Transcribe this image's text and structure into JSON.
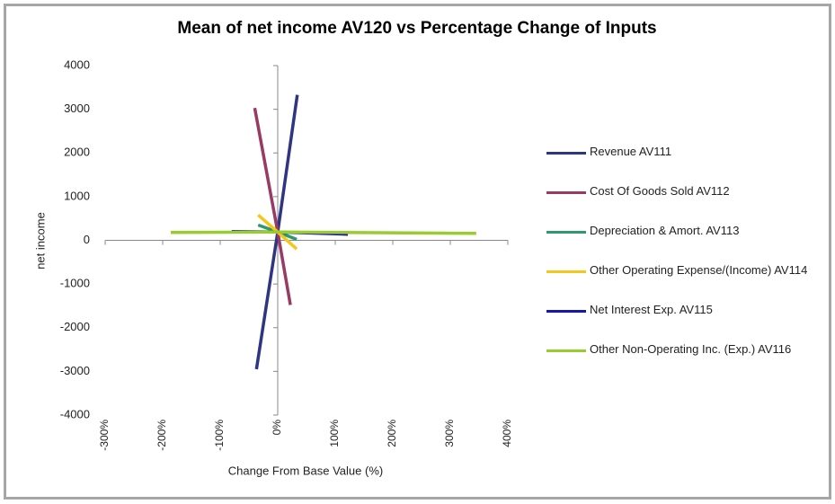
{
  "chart_data": {
    "type": "line",
    "title": "Mean of net income AV120 vs Percentage Change of Inputs",
    "x_label": "Change From Base Value (%)",
    "y_label": "net income",
    "xlim": [
      -300,
      400
    ],
    "xticks": [
      {
        "value": -300,
        "label": "-300%"
      },
      {
        "value": -200,
        "label": "-200%"
      },
      {
        "value": -100,
        "label": "-100%"
      },
      {
        "value": 0,
        "label": "0%"
      },
      {
        "value": 100,
        "label": "100%"
      },
      {
        "value": 200,
        "label": "200%"
      },
      {
        "value": 300,
        "label": "300%"
      },
      {
        "value": 400,
        "label": "400%"
      }
    ],
    "ylim": [
      -4000,
      4000
    ],
    "yticks": [
      -4000,
      -3000,
      -2000,
      -1000,
      0,
      1000,
      2000,
      3000,
      4000
    ],
    "series": [
      {
        "name": "Revenue AV111",
        "color": "#2e3583",
        "x": [
          -37,
          0,
          34
        ],
        "values": [
          -2950,
          190,
          3330
        ]
      },
      {
        "name": "Cost Of Goods Sold AV112",
        "color": "#983a63",
        "x": [
          -40,
          0,
          22
        ],
        "values": [
          3030,
          190,
          -1480
        ]
      },
      {
        "name": "Depreciation & Amort. AV113",
        "color": "#2e9a6c",
        "x": [
          -34,
          0,
          33
        ],
        "values": [
          350,
          190,
          20
        ]
      },
      {
        "name": "Other Operating Expense/(Income) AV114",
        "color": "#f5c71a",
        "x": [
          -34,
          0,
          33
        ],
        "values": [
          580,
          190,
          -200
        ]
      },
      {
        "name": "Net Interest Exp. AV115",
        "color": "#1717ad",
        "x": [
          -80,
          0,
          122
        ],
        "values": [
          200,
          190,
          140
        ]
      },
      {
        "name": "Other Non-Operating Inc. (Exp.) AV116",
        "color": "#99cc2e",
        "x": [
          -186,
          0,
          345
        ],
        "values": [
          180,
          190,
          160
        ]
      }
    ]
  }
}
